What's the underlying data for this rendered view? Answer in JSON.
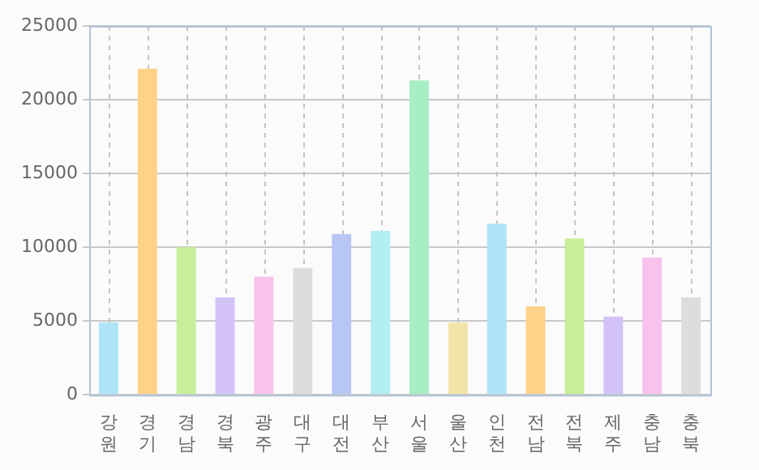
{
  "chart_data": {
    "type": "bar",
    "categories": [
      "강원",
      "경기",
      "경남",
      "경북",
      "광주",
      "대구",
      "대전",
      "부산",
      "서울",
      "울산",
      "인천",
      "전남",
      "전북",
      "제주",
      "충남",
      "충북"
    ],
    "values": [
      4900,
      22100,
      10000,
      6600,
      8000,
      8600,
      10900,
      11100,
      21300,
      4900,
      11600,
      6000,
      10600,
      5300,
      9300,
      6600
    ],
    "colors": [
      "#aee4f8",
      "#ffd28a",
      "#c8ee9a",
      "#d2c2f8",
      "#f8c2ec",
      "#dddddd",
      "#b8c6f4",
      "#b2eef2",
      "#a8eec4",
      "#f2e4a8",
      "#aee4f8",
      "#ffd28a",
      "#c8ee9a",
      "#d2c2f8",
      "#f8c2ec",
      "#dddddd"
    ],
    "ylim": [
      0,
      25000
    ],
    "yticks": [
      0,
      5000,
      10000,
      15000,
      20000,
      25000
    ],
    "grid": true,
    "legend": false
  }
}
